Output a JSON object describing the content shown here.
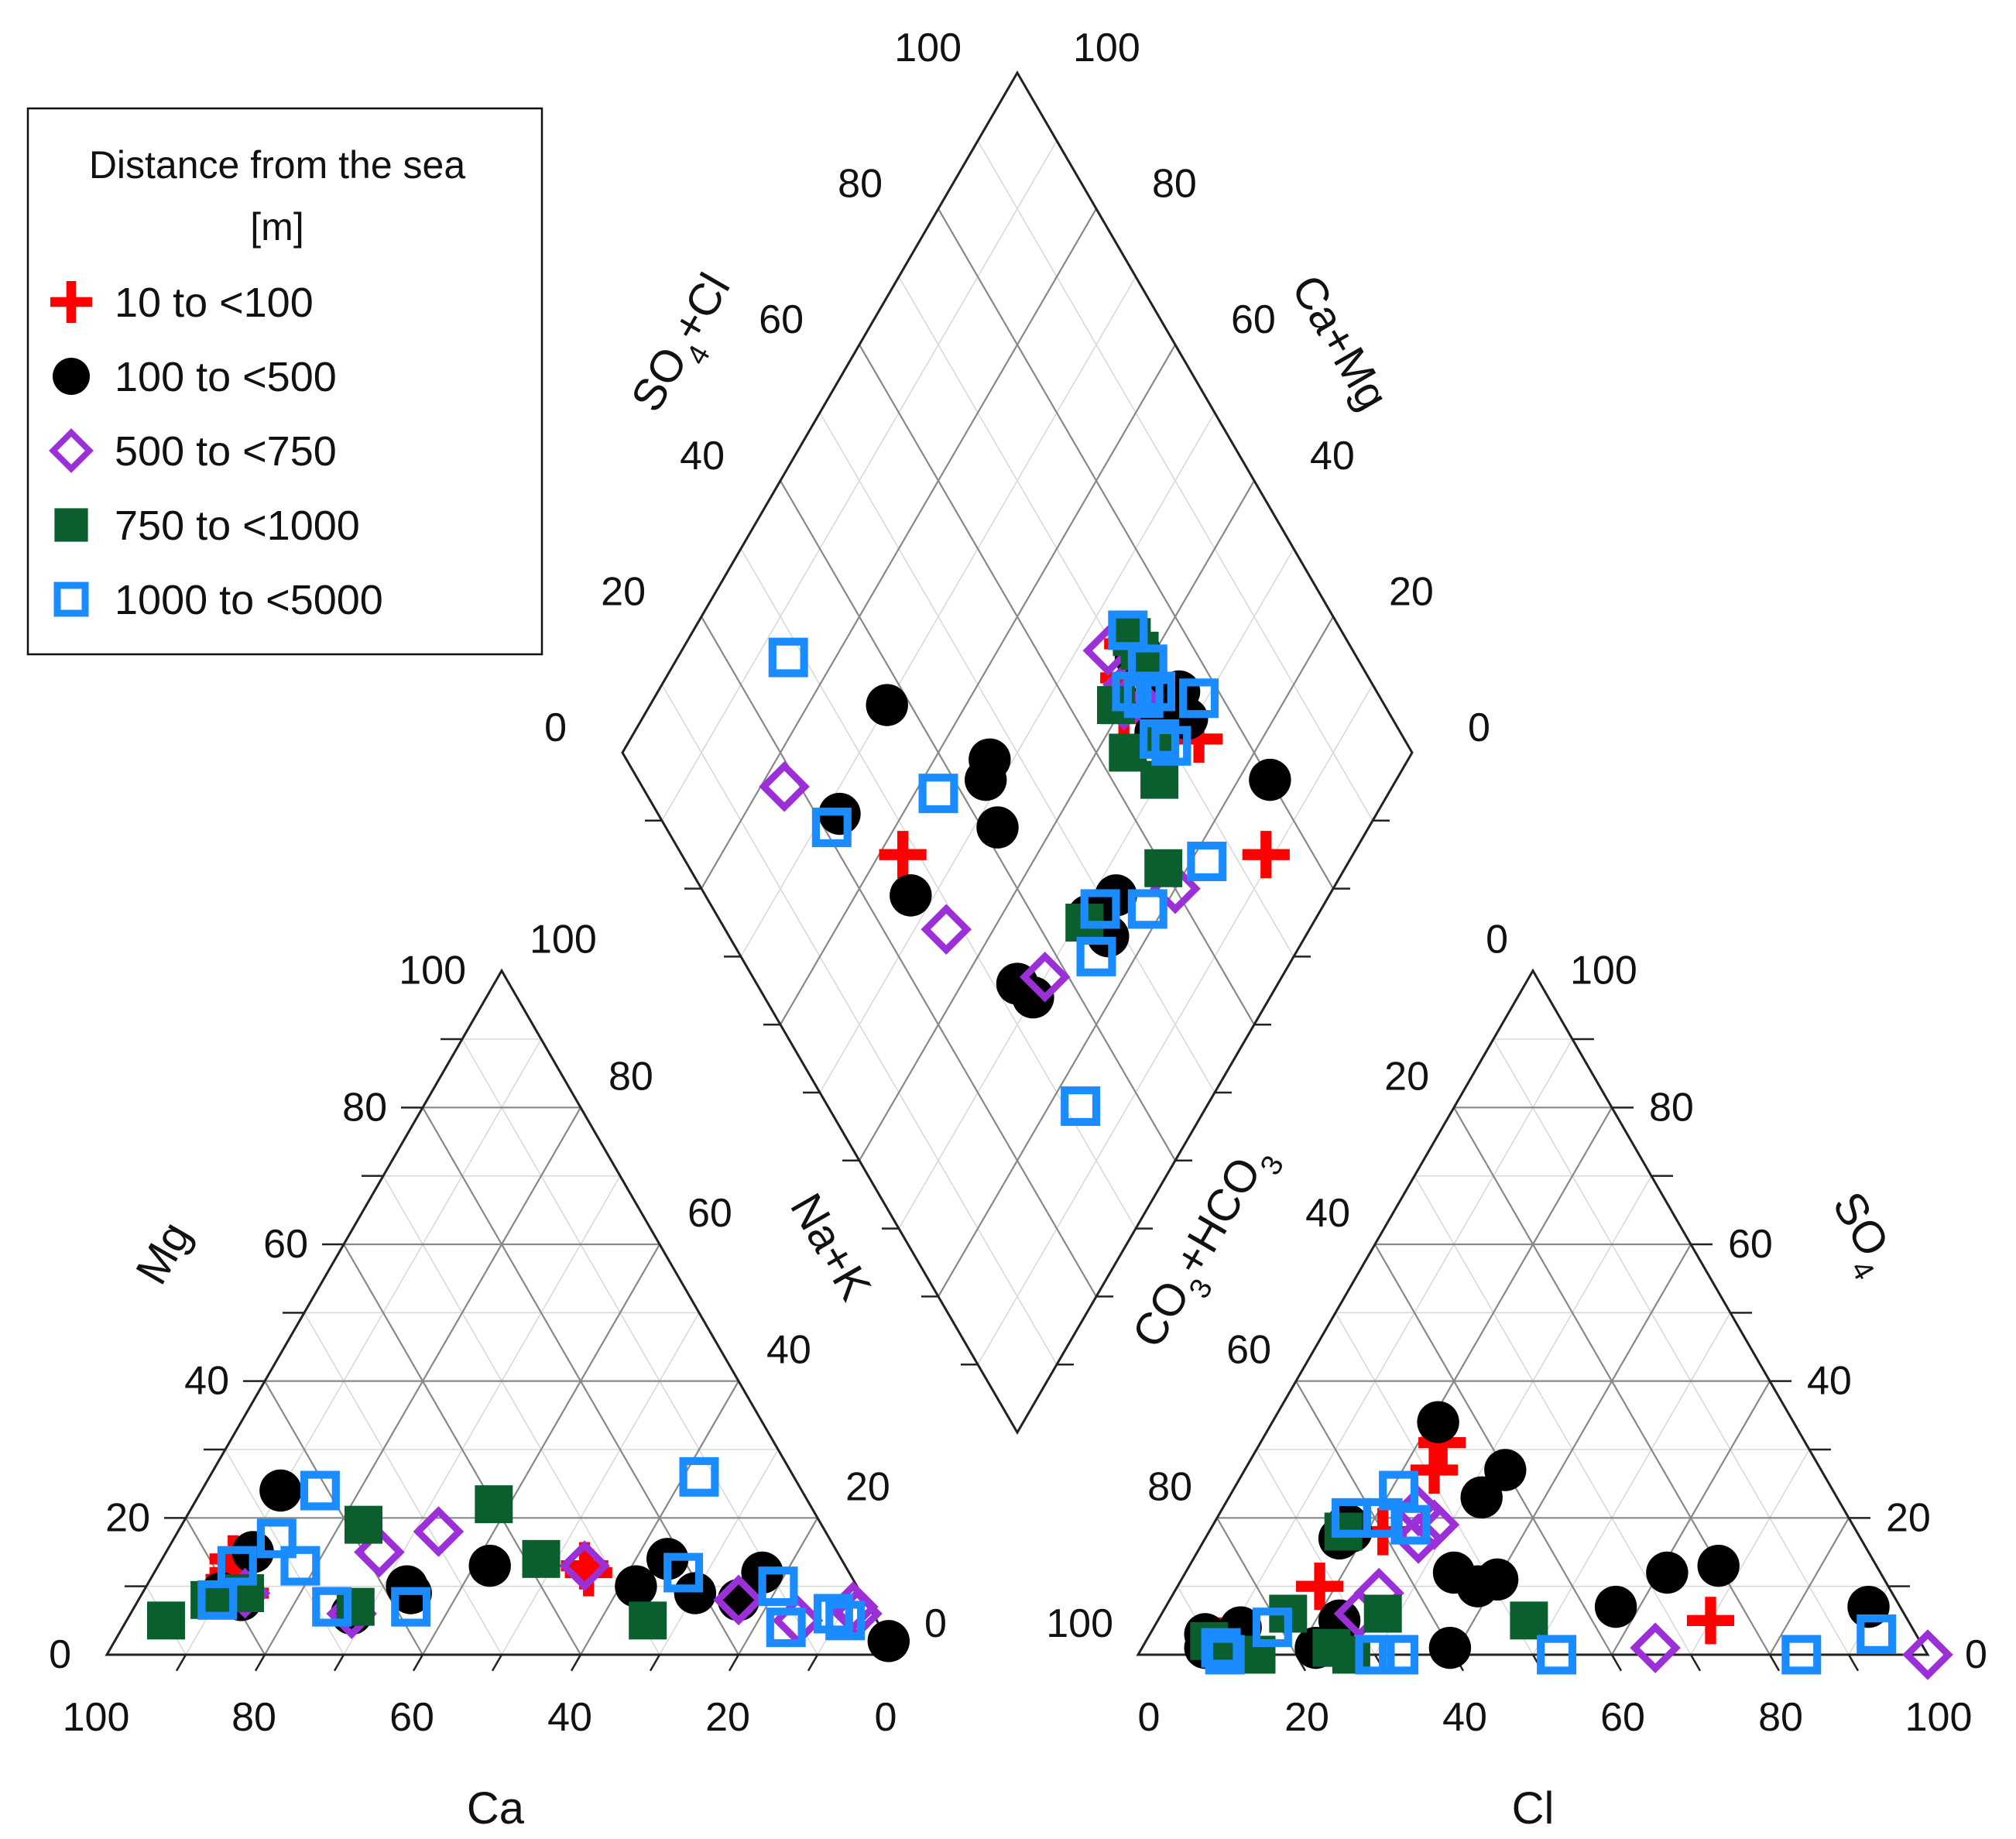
{
  "chart_data": {
    "type": "scatter",
    "subtype": "piper-diagram",
    "legend": {
      "title_line1": "Distance from the sea",
      "title_line2": "[m]",
      "placement": "top-left"
    },
    "series": [
      {
        "name": "10 to <100",
        "marker": "plus",
        "color": "#ff0000"
      },
      {
        "name": "100 to <500",
        "marker": "circle",
        "color": "#000000"
      },
      {
        "name": "500 to <750",
        "marker": "diamond-open",
        "color": "#9b30d9"
      },
      {
        "name": "750 to <1000",
        "marker": "square",
        "color": "#0b5e2e"
      },
      {
        "name": "1000 to <5000",
        "marker": "square-open",
        "color": "#1a8cff"
      }
    ],
    "cation_triangle": {
      "axis_labels": {
        "left": "Mg",
        "right": "Na+K",
        "bottom": "Ca"
      },
      "left_ticks": [
        "0",
        "20",
        "40",
        "60",
        "80",
        "100"
      ],
      "right_ticks": [
        "0",
        "20",
        "40",
        "60",
        "80",
        "100"
      ],
      "bottom_ticks": [
        "100",
        "80",
        "60",
        "40",
        "20",
        "0"
      ],
      "points": [
        [
          0,
          13,
          9
        ],
        [
          0,
          10,
          11
        ],
        [
          0,
          9,
          14
        ],
        [
          0,
          10,
          12
        ],
        [
          0,
          54,
          13
        ],
        [
          0,
          55,
          12
        ],
        [
          1,
          11,
          15
        ],
        [
          1,
          13,
          8
        ],
        [
          1,
          10,
          9
        ],
        [
          1,
          10,
          24
        ],
        [
          1,
          28,
          6
        ],
        [
          1,
          28,
          6
        ],
        [
          1,
          33,
          10
        ],
        [
          1,
          34,
          9
        ],
        [
          1,
          42,
          13
        ],
        [
          1,
          62,
          10
        ],
        [
          1,
          64,
          14
        ],
        [
          1,
          70,
          9
        ],
        [
          1,
          76,
          8
        ],
        [
          1,
          77,
          12
        ],
        [
          1,
          98,
          2
        ],
        [
          2,
          13,
          9
        ],
        [
          2,
          27,
          15
        ],
        [
          2,
          28,
          6
        ],
        [
          2,
          33,
          18
        ],
        [
          2,
          54,
          13
        ],
        [
          2,
          76,
          8
        ],
        [
          2,
          85,
          5
        ],
        [
          2,
          91,
          7
        ],
        [
          2,
          92,
          6
        ],
        [
          3,
          5,
          5
        ],
        [
          3,
          9,
          8
        ],
        [
          3,
          13,
          9
        ],
        [
          3,
          23,
          19
        ],
        [
          3,
          28,
          7
        ],
        [
          3,
          38,
          22
        ],
        [
          3,
          48,
          14
        ],
        [
          3,
          66,
          5
        ],
        [
          4,
          10,
          13
        ],
        [
          4,
          10,
          8
        ],
        [
          4,
          15,
          24
        ],
        [
          4,
          13,
          17
        ],
        [
          4,
          18,
          13
        ],
        [
          4,
          25,
          7
        ],
        [
          4,
          35,
          7
        ],
        [
          4,
          62,
          26
        ],
        [
          4,
          67,
          12
        ],
        [
          4,
          80,
          10
        ],
        [
          4,
          84,
          4
        ],
        [
          4,
          89,
          6
        ],
        [
          4,
          91,
          5
        ]
      ]
    },
    "anion_triangle": {
      "axis_labels": {
        "left": "CO3+HCO3",
        "right": "SO4",
        "bottom": "Cl"
      },
      "left_ticks": [
        "100",
        "80",
        "60",
        "40",
        "20",
        "0"
      ],
      "right_ticks": [
        "0",
        "20",
        "40",
        "60",
        "80",
        "100"
      ],
      "bottom_ticks": [
        "0",
        "20",
        "40",
        "60",
        "80",
        "100"
      ],
      "points": [
        [
          0,
          18,
          10
        ],
        [
          0,
          23,
          31
        ],
        [
          0,
          24,
          27
        ],
        [
          0,
          22,
          18
        ],
        [
          0,
          9,
          2
        ],
        [
          0,
          70,
          5
        ],
        [
          1,
          7,
          3
        ],
        [
          1,
          8,
          1
        ],
        [
          1,
          11,
          4
        ],
        [
          1,
          12,
          1
        ],
        [
          1,
          18,
          18
        ],
        [
          1,
          17,
          17
        ],
        [
          1,
          17,
          19
        ],
        [
          1,
          23,
          5
        ],
        [
          1,
          22,
          1
        ],
        [
          1,
          21,
          34
        ],
        [
          1,
          34,
          12
        ],
        [
          1,
          38,
          10
        ],
        [
          1,
          40,
          11
        ],
        [
          1,
          39,
          1
        ],
        [
          1,
          32,
          23
        ],
        [
          1,
          33,
          27
        ],
        [
          1,
          57,
          7
        ],
        [
          1,
          61,
          12
        ],
        [
          1,
          67,
          13
        ],
        [
          1,
          89,
          7
        ],
        [
          2,
          25,
          21
        ],
        [
          2,
          28,
          19
        ],
        [
          2,
          26,
          9
        ],
        [
          2,
          25,
          6
        ],
        [
          2,
          27,
          17
        ],
        [
          2,
          65,
          1
        ],
        [
          2,
          100,
          0
        ],
        [
          3,
          10,
          1
        ],
        [
          3,
          15,
          0
        ],
        [
          3,
          16,
          6
        ],
        [
          3,
          17,
          18
        ],
        [
          3,
          24,
          1
        ],
        [
          3,
          27,
          0
        ],
        [
          3,
          28,
          6
        ],
        [
          3,
          47,
          5
        ],
        [
          3,
          8,
          2
        ],
        [
          3,
          11,
          0
        ],
        [
          4,
          10,
          1
        ],
        [
          4,
          11,
          0
        ],
        [
          4,
          15,
          4
        ],
        [
          4,
          17,
          20
        ],
        [
          4,
          21,
          24
        ],
        [
          4,
          21,
          20
        ],
        [
          4,
          25,
          19
        ],
        [
          4,
          30,
          0
        ],
        [
          4,
          33,
          0
        ],
        [
          4,
          53,
          0
        ],
        [
          4,
          84,
          0
        ],
        [
          4,
          92,
          3
        ]
      ]
    },
    "diamond": {
      "axis_labels": {
        "left": "SO4+Cl",
        "right": "Ca+Mg"
      },
      "left_ticks": [
        "0",
        "20",
        "40",
        "60",
        "80",
        "100"
      ],
      "right_ticks": [
        "0",
        "20",
        "40",
        "60",
        "80",
        "100"
      ],
      "points": [
        [
          0,
          26,
          11
        ],
        [
          0,
          26,
          28
        ],
        [
          0,
          28,
          44
        ],
        [
          0,
          31,
          42
        ],
        [
          0,
          34,
          39
        ],
        [
          0,
          72,
          57
        ],
        [
          1,
          26,
          31
        ],
        [
          1,
          25,
          34
        ],
        [
          1,
          28,
          42
        ],
        [
          1,
          48,
          27
        ],
        [
          1,
          20,
          16
        ],
        [
          1,
          31,
          34
        ],
        [
          1,
          30,
          37
        ],
        [
          1,
          27,
          42
        ],
        [
          1,
          74,
          53
        ],
        [
          1,
          77,
          68
        ],
        [
          1,
          58,
          47
        ],
        [
          1,
          56,
          52
        ],
        [
          1,
          67,
          33
        ],
        [
          1,
          66,
          30
        ],
        [
          1,
          53,
          29
        ],
        [
          1,
          52,
          25
        ],
        [
          1,
          63,
          70
        ],
        [
          1,
          54,
          53
        ],
        [
          2,
          33,
          40
        ],
        [
          2,
          31,
          39
        ],
        [
          2,
          31,
          41
        ],
        [
          2,
          31,
          46
        ],
        [
          2,
          72,
          46
        ],
        [
          2,
          82,
          77
        ],
        [
          2,
          40,
          20
        ],
        [
          2,
          63,
          30
        ],
        [
          3,
          27,
          44
        ],
        [
          3,
          27,
          40
        ],
        [
          3,
          27,
          42
        ],
        [
          3,
          31,
          33
        ],
        [
          3,
          34,
          41
        ],
        [
          3,
          36,
          36
        ],
        [
          3,
          34,
          30
        ],
        [
          3,
          40,
          23
        ],
        [
          3,
          54,
          29
        ],
        [
          4,
          27,
          45
        ],
        [
          4,
          30,
          38
        ],
        [
          4,
          31,
          40
        ],
        [
          4,
          28,
          37
        ],
        [
          4,
          28,
          37
        ],
        [
          4,
          27,
          40
        ],
        [
          4,
          30,
          31
        ],
        [
          4,
          30,
          31
        ],
        [
          4,
          51,
          28
        ],
        [
          4,
          45,
          22
        ],
        [
          4,
          34,
          18
        ],
        [
          4,
          31,
          33
        ],
        [
          4,
          55,
          25
        ],
        [
          4,
          68,
          16
        ],
        [
          4,
          63,
          57
        ],
        [
          4,
          79,
          68
        ],
        [
          4,
          72,
          86
        ],
        [
          4,
          23,
          31
        ]
      ]
    }
  }
}
